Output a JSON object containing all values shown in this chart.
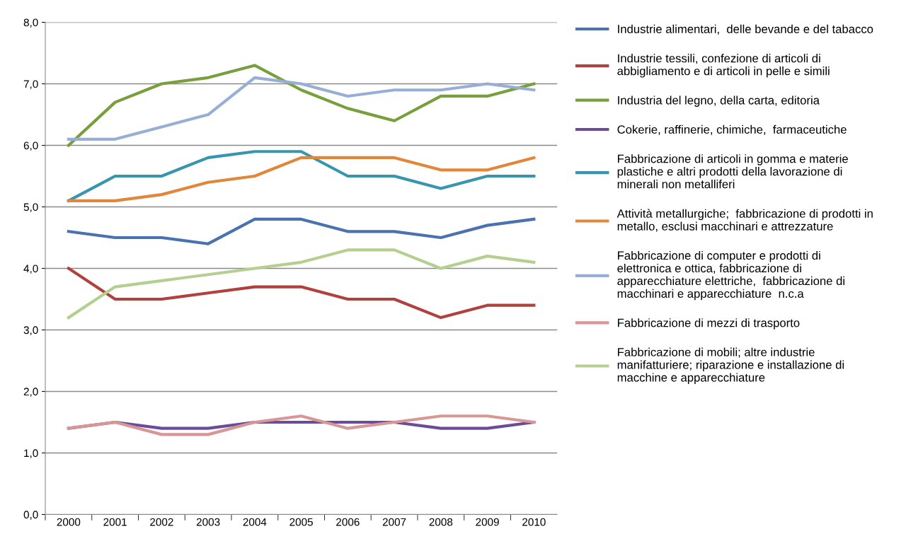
{
  "chart_data": {
    "type": "line",
    "categories": [
      "2000",
      "2001",
      "2002",
      "2003",
      "2004",
      "2005",
      "2006",
      "2007",
      "2008",
      "2009",
      "2010"
    ],
    "ylim": [
      0,
      8
    ],
    "yticks": [
      {
        "value": 0,
        "label": "0,0"
      },
      {
        "value": 1,
        "label": "1,0"
      },
      {
        "value": 2,
        "label": "2,0"
      },
      {
        "value": 3,
        "label": "3,0"
      },
      {
        "value": 4,
        "label": "4,0"
      },
      {
        "value": 5,
        "label": "5,0"
      },
      {
        "value": 6,
        "label": "6,0"
      },
      {
        "value": 7,
        "label": "7,0"
      },
      {
        "value": 8,
        "label": "8,0"
      }
    ],
    "grid": "y",
    "legend": "right",
    "marker": "none",
    "line_style": "solid",
    "series": [
      {
        "name": "Industrie alimentari,  delle bevande e del tabacco",
        "color": "#4a72b0",
        "values": [
          4.6,
          4.5,
          4.5,
          4.4,
          4.8,
          4.8,
          4.6,
          4.6,
          4.5,
          4.7,
          4.8
        ]
      },
      {
        "name": "Industrie tessili, confezione di articoli di\nabbigliamento e di articoli in pelle e simili",
        "color": "#b0413e",
        "values": [
          4.0,
          3.5,
          3.5,
          3.6,
          3.7,
          3.7,
          3.5,
          3.5,
          3.2,
          3.4,
          3.4
        ]
      },
      {
        "name": "Industria del legno, della carta, editoria",
        "color": "#77a03c",
        "values": [
          6.0,
          6.7,
          7.0,
          7.1,
          7.3,
          6.9,
          6.6,
          6.4,
          6.8,
          6.8,
          7.0
        ]
      },
      {
        "name": "Cokerie, raffinerie, chimiche,  farmaceutiche",
        "color": "#6b4c9a",
        "values": [
          1.4,
          1.5,
          1.4,
          1.4,
          1.5,
          1.5,
          1.5,
          1.5,
          1.4,
          1.4,
          1.5
        ]
      },
      {
        "name": "Fabbricazione di articoli in gomma e materie\nplastiche e altri prodotti della lavorazione di\nminerali non metalliferi",
        "color": "#3796ae",
        "values": [
          5.1,
          5.5,
          5.5,
          5.8,
          5.9,
          5.9,
          5.5,
          5.5,
          5.3,
          5.5,
          5.5
        ]
      },
      {
        "name": "Attività metallurgiche;  fabbricazione di prodotti in\nmetallo, esclusi macchinari e attrezzature",
        "color": "#e2873a",
        "values": [
          5.1,
          5.1,
          5.2,
          5.4,
          5.5,
          5.8,
          5.8,
          5.8,
          5.6,
          5.6,
          5.8
        ]
      },
      {
        "name": "Fabbricazione di computer e prodotti di\nelettronica e ottica, fabbricazione di\napparecchiature elettriche,  fabbricazione di\nmacchinari e apparecchiature  n.c.a",
        "color": "#97aed6",
        "values": [
          6.1,
          6.1,
          6.3,
          6.5,
          7.1,
          7.0,
          6.8,
          6.9,
          6.9,
          7.0,
          6.9
        ]
      },
      {
        "name": "Fabbricazione di mezzi di trasporto",
        "color": "#d89694",
        "values": [
          1.4,
          1.5,
          1.3,
          1.3,
          1.5,
          1.6,
          1.4,
          1.5,
          1.6,
          1.6,
          1.5
        ]
      },
      {
        "name": "Fabbricazione di mobili; altre industrie\nmanifatturiere; riparazione e installazione di\nmacchine e apparecchiature",
        "color": "#b4cf8f",
        "values": [
          3.2,
          3.7,
          3.8,
          3.9,
          4.0,
          4.1,
          4.3,
          4.3,
          4.0,
          4.2,
          4.1
        ]
      }
    ]
  }
}
